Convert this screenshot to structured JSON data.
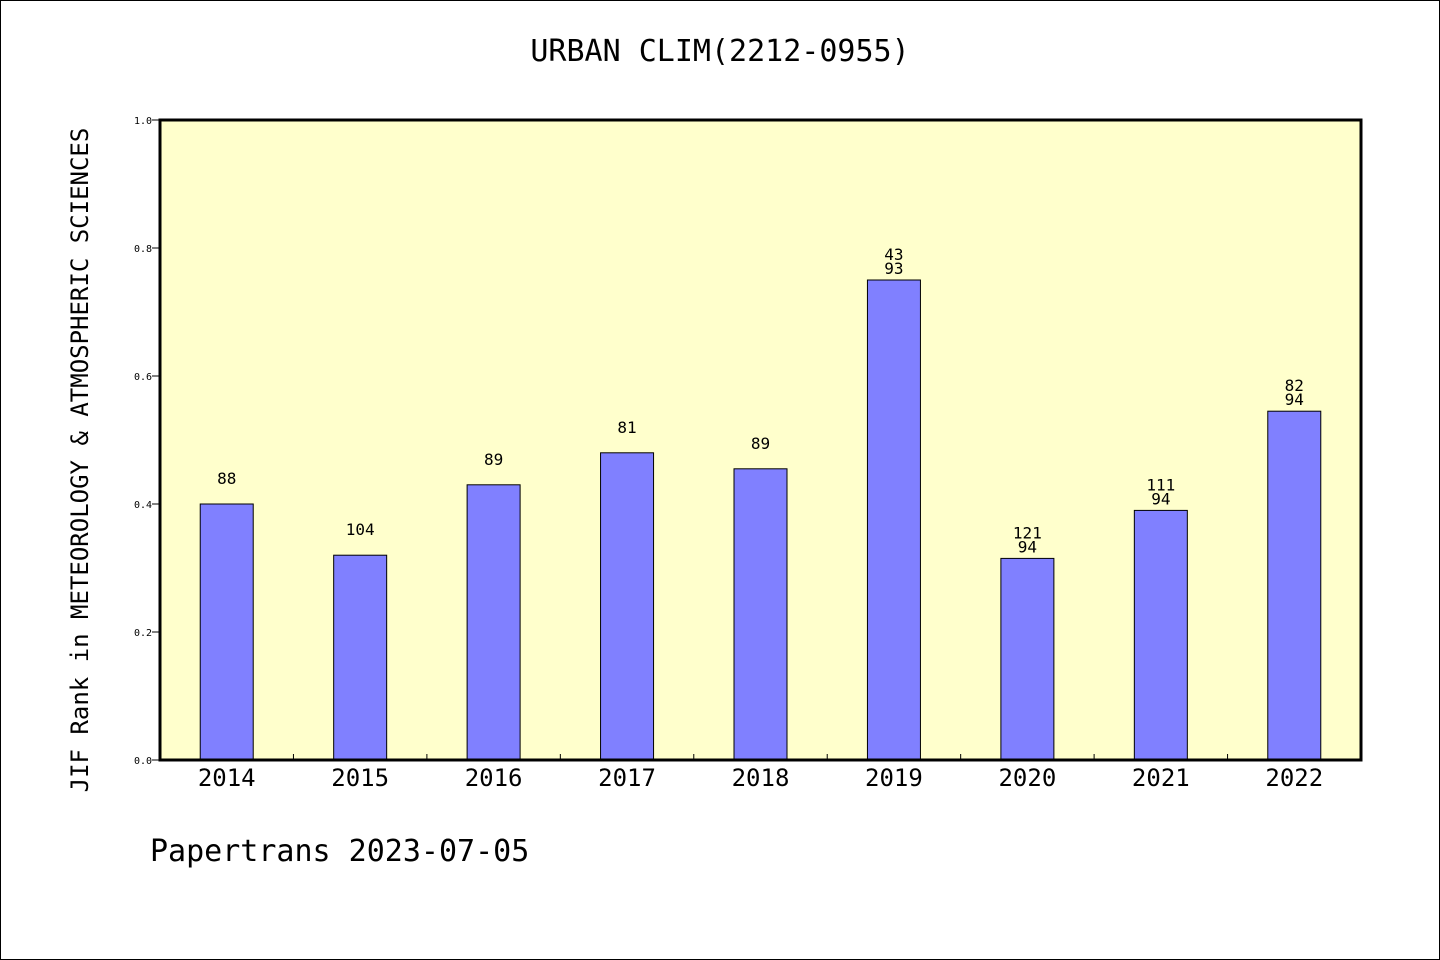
{
  "footer_text": "Papertrans 2023-07-05",
  "chart_data": {
    "type": "bar",
    "title": "URBAN CLIM(2212-0955)",
    "xlabel": "",
    "ylabel": "JIF Rank in METEOROLOGY & ATMOSPHERIC SCIENCES",
    "categories": [
      "2014",
      "2015",
      "2016",
      "2017",
      "2018",
      "2019",
      "2020",
      "2021",
      "2022"
    ],
    "values": [
      0.4,
      0.32,
      0.43,
      0.48,
      0.455,
      0.75,
      0.315,
      0.39,
      0.545
    ],
    "bar_labels": [
      [
        "88"
      ],
      [
        "104"
      ],
      [
        "89"
      ],
      [
        "81"
      ],
      [
        "89"
      ],
      [
        "43",
        "93"
      ],
      [
        "121",
        "94"
      ],
      [
        "111",
        "94"
      ],
      [
        "82",
        "94"
      ]
    ],
    "ylim": [
      0,
      1.0
    ],
    "yticks": [
      "0.0",
      "0.2",
      "0.4",
      "0.6",
      "0.8",
      "1.0"
    ],
    "grid": false,
    "legend": "none",
    "colors": {
      "bar": "#8080ff",
      "plot_background": "#ffffcc",
      "bar_edge": "#000000"
    }
  }
}
